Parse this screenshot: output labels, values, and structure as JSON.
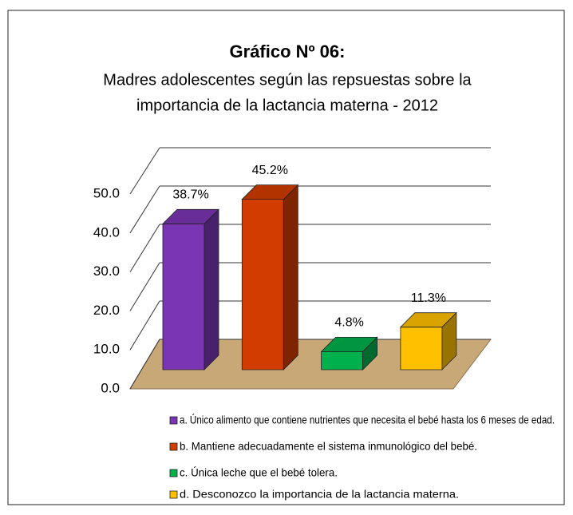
{
  "chart_data": {
    "type": "bar3d",
    "title": "Gráfico Nº 06:",
    "subtitle": [
      "Madres adolescentes según las repsuestas sobre la",
      "importancia de la lactancia materna - 2012"
    ],
    "categories": [
      "a. Único alimento que contiene nutrientes que necesita el bebé hasta los 6 meses de edad.",
      "b. Mantiene adecuadamente el sistema inmunológico del bebé.",
      "c.  Única leche que el bebé tolera.",
      "d. Desconozco la importancia de la lactancia materna."
    ],
    "values": [
      38.7,
      45.2,
      4.8,
      11.3
    ],
    "value_labels": [
      "38.7%",
      "45.2%",
      "4.8%",
      "11.3%"
    ],
    "colors": [
      "#7a35b4",
      "#d23c00",
      "#00b04c",
      "#ffc000"
    ],
    "ylim": [
      0,
      50
    ],
    "yticks": [
      {
        "value": 0,
        "label": "0.0"
      },
      {
        "value": 10,
        "label": "10.0"
      },
      {
        "value": 20,
        "label": "20.0"
      },
      {
        "value": 30,
        "label": "30.0"
      },
      {
        "value": 40,
        "label": "40.0"
      },
      {
        "value": 50,
        "label": "50.0"
      }
    ],
    "grid": true
  }
}
